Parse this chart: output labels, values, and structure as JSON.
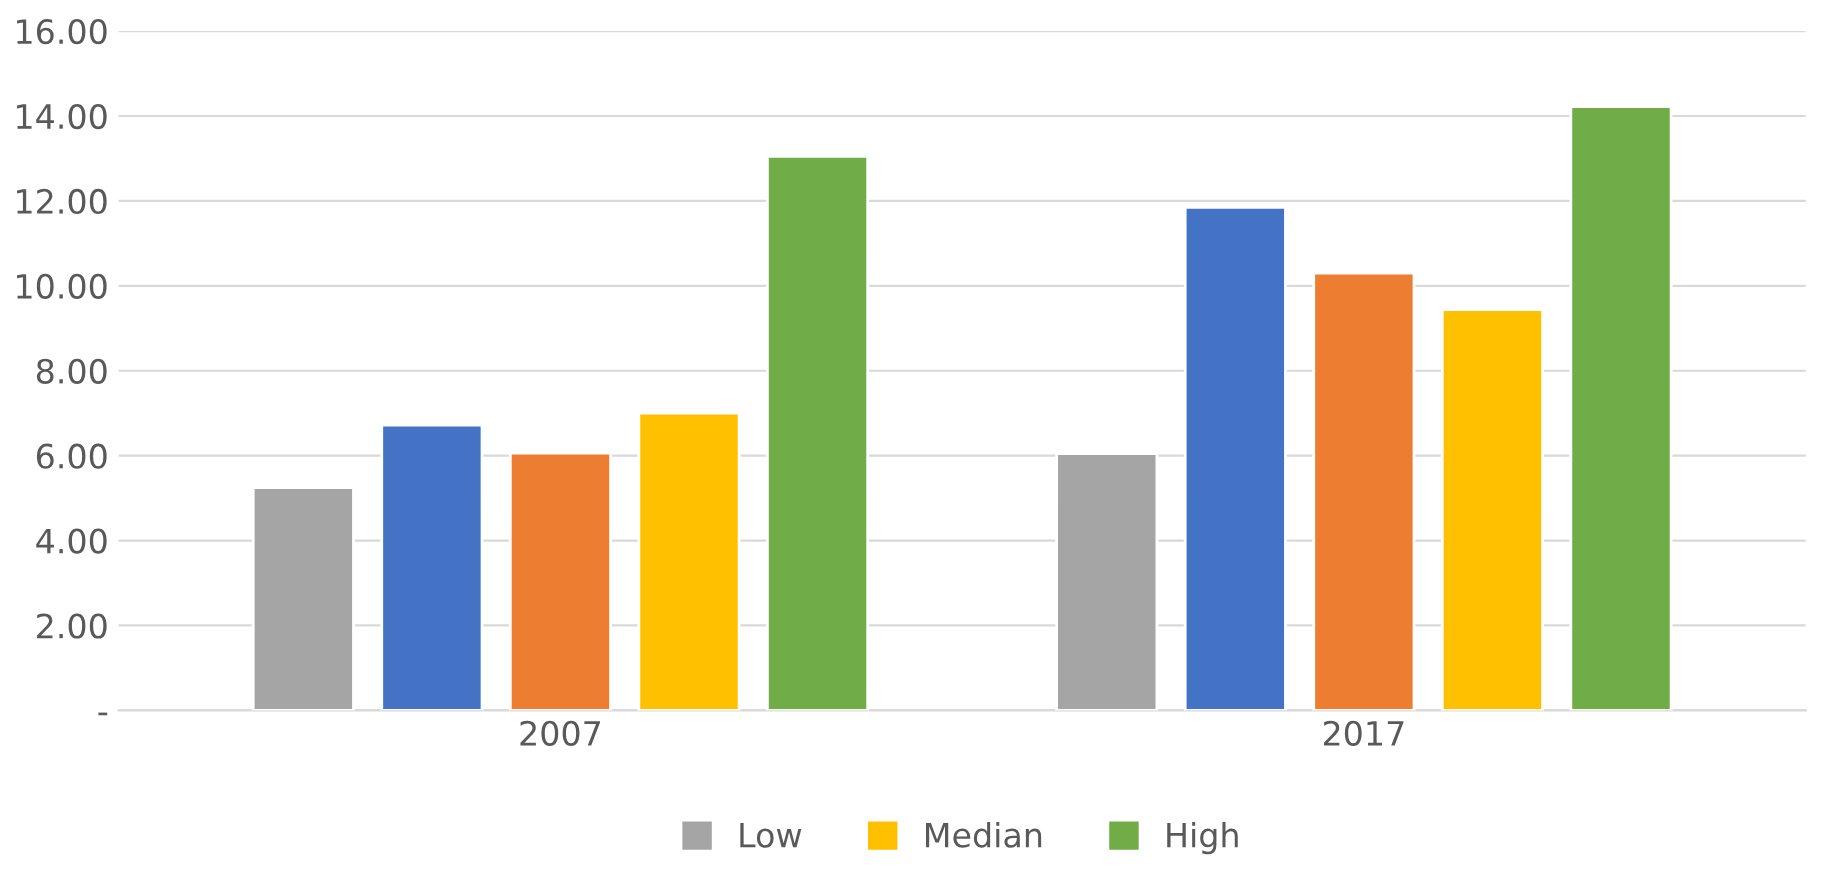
{
  "chart_data": {
    "type": "bar",
    "categories": [
      "2007",
      "2017"
    ],
    "series": [
      {
        "name": "Low",
        "color": "#a5a5a5",
        "values": [
          5.25,
          6.05
        ]
      },
      {
        "color": "#4472c4",
        "values": [
          6.72,
          11.85
        ]
      },
      {
        "color": "#ed7d31",
        "values": [
          6.06,
          10.3
        ]
      },
      {
        "name": "Median",
        "color": "#ffc000",
        "values": [
          7.0,
          9.44
        ]
      },
      {
        "name": "High",
        "color": "#70ad47",
        "values": [
          13.05,
          14.22
        ]
      }
    ],
    "ylim": [
      0,
      16
    ],
    "yticks": [
      {
        "value": 0,
        "label": "-"
      },
      {
        "value": 2,
        "label": "2.00"
      },
      {
        "value": 4,
        "label": "4.00"
      },
      {
        "value": 6,
        "label": "6.00"
      },
      {
        "value": 8,
        "label": "8.00"
      },
      {
        "value": 10,
        "label": "10.00"
      },
      {
        "value": 12,
        "label": "12.00"
      },
      {
        "value": 14,
        "label": "14.00"
      },
      {
        "value": 16,
        "label": "16.00"
      }
    ],
    "grid": "y",
    "legend": "bottom"
  }
}
